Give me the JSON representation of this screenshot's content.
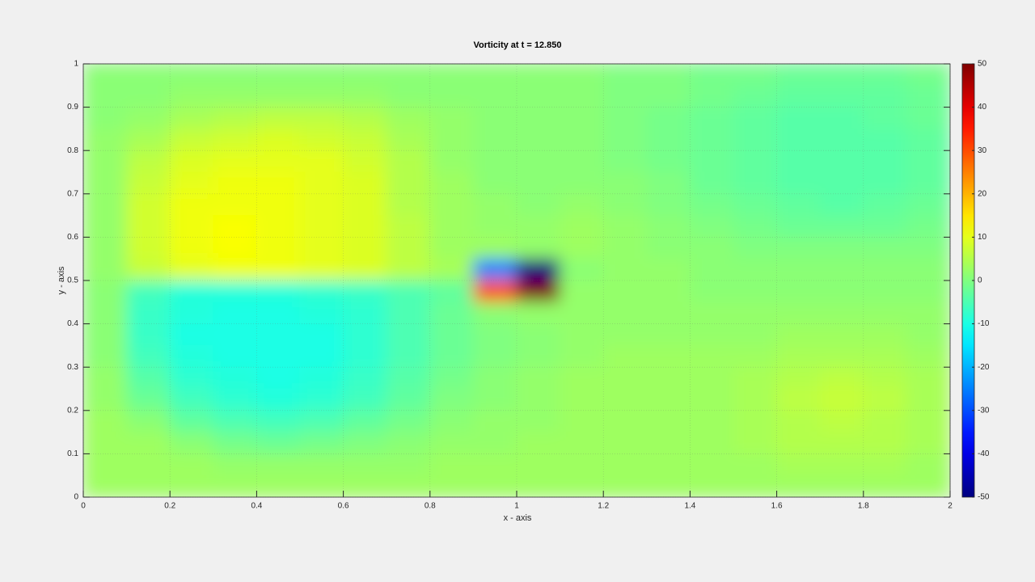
{
  "chart_data": {
    "type": "heatmap",
    "title": "Vorticity at t = 12.850",
    "x_label": "x - axis",
    "y_label": "y - axis",
    "x": [
      0.05,
      0.15,
      0.25,
      0.35,
      0.45,
      0.55,
      0.65,
      0.75,
      0.85,
      0.95,
      1.05,
      1.15,
      1.25,
      1.35,
      1.45,
      1.55,
      1.65,
      1.75,
      1.85,
      1.95
    ],
    "y": [
      0.975,
      0.925,
      0.875,
      0.825,
      0.775,
      0.725,
      0.675,
      0.625,
      0.575,
      0.525,
      0.475,
      0.425,
      0.375,
      0.325,
      0.275,
      0.225,
      0.175,
      0.125,
      0.075,
      0.025
    ],
    "values": [
      [
        1,
        1,
        1,
        1,
        1,
        1,
        1,
        1,
        1,
        1,
        1,
        1,
        0,
        0,
        -1,
        -1,
        -2,
        -2,
        -2,
        -1
      ],
      [
        1,
        1,
        2,
        2,
        2,
        2,
        2,
        1,
        1,
        1,
        1,
        1,
        0,
        0,
        -1,
        -2,
        -3,
        -3,
        -3,
        -2
      ],
      [
        1,
        2,
        4,
        5,
        6,
        6,
        5,
        3,
        2,
        1,
        1,
        1,
        0,
        -1,
        -2,
        -3,
        -4,
        -4,
        -3,
        -2
      ],
      [
        2,
        4,
        7,
        8,
        9,
        8,
        7,
        4,
        2,
        1,
        1,
        1,
        0,
        -1,
        -2,
        -3,
        -4,
        -4,
        -4,
        -3
      ],
      [
        2,
        6,
        9,
        10,
        10,
        10,
        8,
        5,
        2,
        1,
        1,
        1,
        0,
        -1,
        -2,
        -3,
        -4,
        -4,
        -4,
        -3
      ],
      [
        2,
        7,
        10,
        11,
        11,
        10,
        9,
        5,
        3,
        1,
        1,
        1,
        1,
        0,
        -2,
        -3,
        -4,
        -4,
        -4,
        -3
      ],
      [
        2,
        8,
        11,
        11,
        11,
        10,
        9,
        5,
        3,
        2,
        1,
        2,
        1,
        0,
        -1,
        -2,
        -3,
        -4,
        -3,
        -2
      ],
      [
        2,
        8,
        11,
        12,
        11,
        10,
        9,
        6,
        3,
        2,
        2,
        3,
        2,
        1,
        0,
        -1,
        -2,
        -2,
        -2,
        -1
      ],
      [
        2,
        8,
        11,
        12,
        11,
        10,
        9,
        6,
        3,
        3,
        2,
        3,
        2,
        1,
        1,
        0,
        0,
        0,
        0,
        0
      ],
      [
        2,
        7,
        10,
        11,
        11,
        10,
        9,
        6,
        4,
        -25,
        -50,
        1,
        2,
        2,
        1,
        1,
        1,
        1,
        1,
        1
      ],
      [
        1,
        -6,
        -9,
        -9,
        -9,
        -8,
        -7,
        -5,
        -3,
        30,
        50,
        2,
        2,
        2,
        1,
        1,
        1,
        1,
        1,
        1
      ],
      [
        1,
        -7,
        -9,
        -10,
        -10,
        -9,
        -8,
        -5,
        -2,
        1,
        2,
        2,
        2,
        2,
        2,
        2,
        2,
        2,
        2,
        2
      ],
      [
        1,
        -7,
        -10,
        -10,
        -10,
        -10,
        -8,
        -5,
        -2,
        0,
        1,
        2,
        2,
        2,
        2,
        2,
        3,
        3,
        3,
        2
      ],
      [
        1,
        -6,
        -9,
        -10,
        -10,
        -10,
        -8,
        -5,
        -2,
        0,
        1,
        2,
        3,
        3,
        3,
        3,
        4,
        4,
        4,
        3
      ],
      [
        2,
        -4,
        -8,
        -9,
        -10,
        -9,
        -7,
        -4,
        -1,
        1,
        2,
        3,
        3,
        3,
        3,
        4,
        5,
        6,
        5,
        4
      ],
      [
        2,
        -2,
        -6,
        -8,
        -9,
        -8,
        -6,
        -3,
        0,
        1,
        2,
        3,
        3,
        3,
        3,
        4,
        6,
        7,
        6,
        4
      ],
      [
        3,
        1,
        -3,
        -5,
        -6,
        -5,
        -3,
        -1,
        1,
        2,
        2,
        3,
        3,
        3,
        3,
        4,
        5,
        6,
        5,
        4
      ],
      [
        3,
        3,
        1,
        -1,
        -2,
        -1,
        0,
        1,
        2,
        2,
        3,
        3,
        3,
        3,
        3,
        4,
        5,
        5,
        5,
        4
      ],
      [
        3,
        3,
        3,
        2,
        2,
        2,
        2,
        2,
        3,
        3,
        3,
        3,
        3,
        3,
        3,
        3,
        4,
        4,
        4,
        3
      ],
      [
        3,
        3,
        3,
        3,
        3,
        3,
        3,
        3,
        3,
        3,
        3,
        3,
        3,
        3,
        3,
        3,
        3,
        3,
        3,
        3
      ]
    ],
    "colormap": "jet",
    "xlim": [
      0,
      2
    ],
    "xticks": [
      0,
      0.2,
      0.4,
      0.6,
      0.8,
      1,
      1.2,
      1.4,
      1.6,
      1.8,
      2
    ],
    "ylim": [
      0,
      1
    ],
    "yticks": [
      0,
      0.1,
      0.2,
      0.3,
      0.4,
      0.5,
      0.6,
      0.7,
      0.8,
      0.9,
      1
    ],
    "clim": [
      -50,
      50
    ],
    "cticks": [
      -50,
      -40,
      -30,
      -20,
      -10,
      0,
      10,
      20,
      30,
      40,
      50
    ],
    "grid": true
  }
}
